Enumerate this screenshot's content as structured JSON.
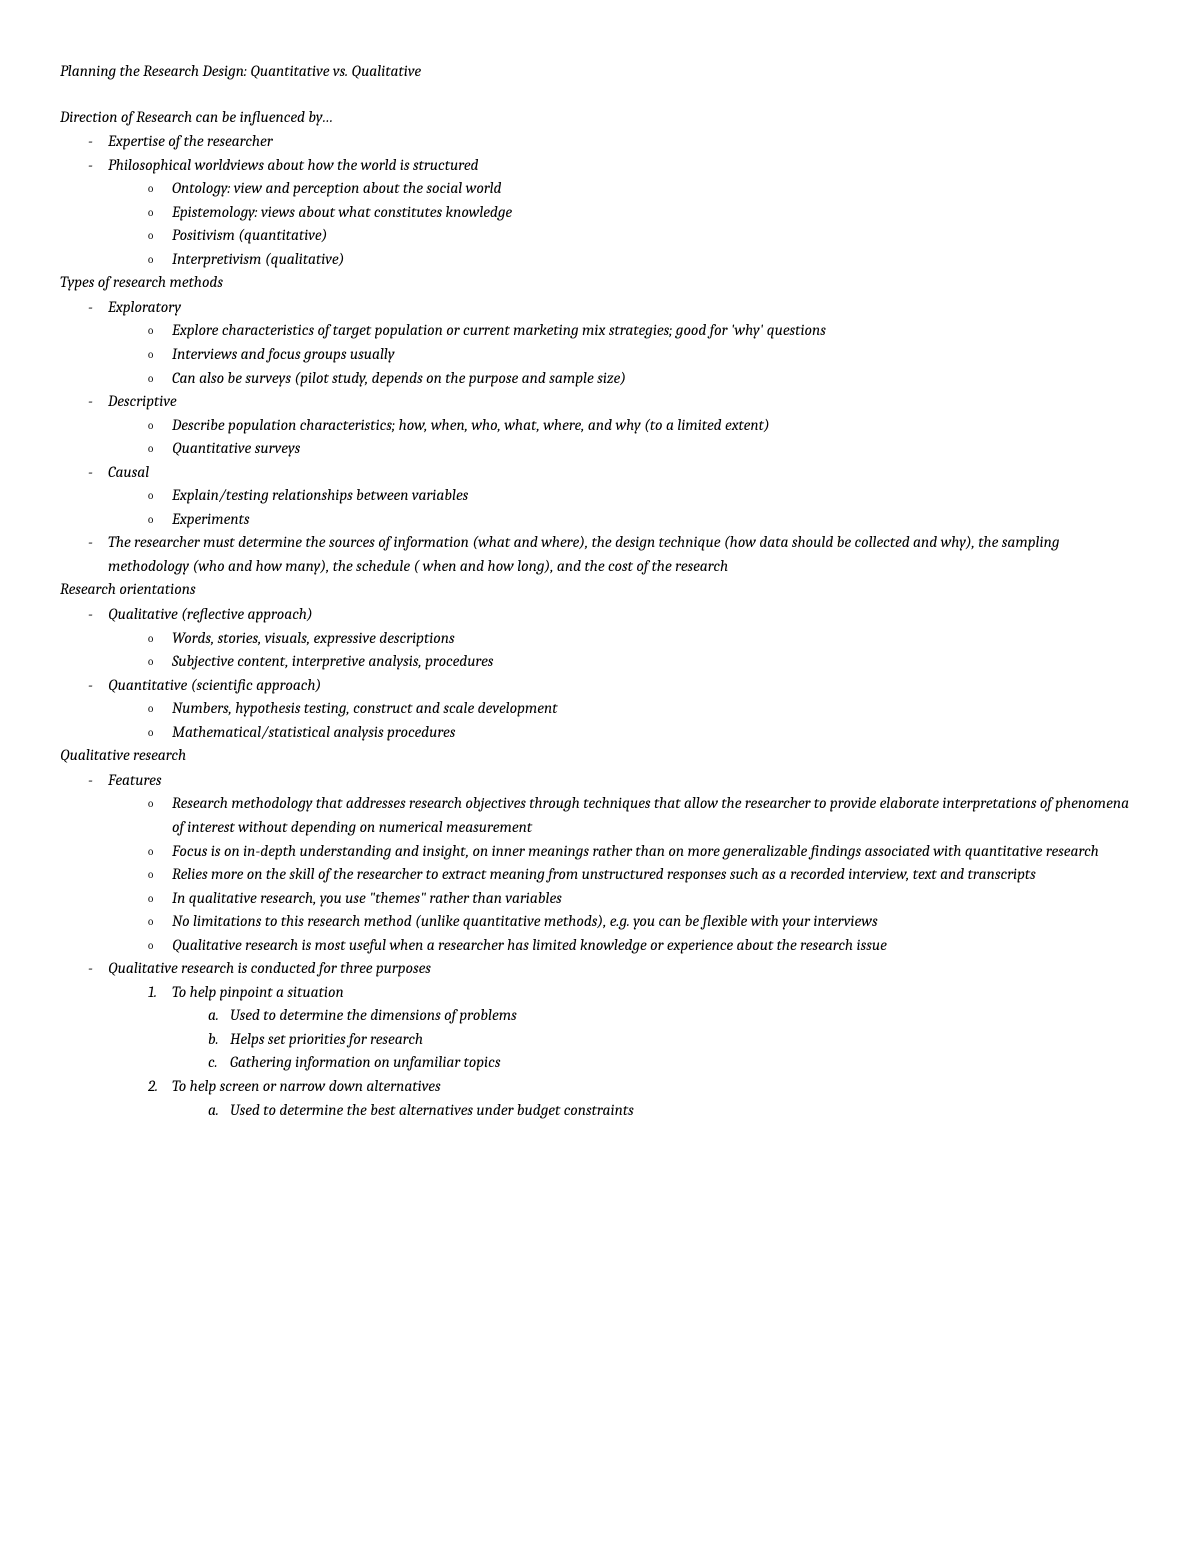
{
  "title": "Planning the Research Design: Quantitative vs. Qualitative",
  "section1": {
    "heading": "Direction of Research can be influenced by…",
    "item1": "Expertise of the researcher",
    "item2": "Philosophical worldviews about how the world is structured",
    "sub1": "Ontology: view and perception about the social world",
    "sub2": "Epistemology: views about what constitutes knowledge",
    "sub3": "Positivism (quantitative)",
    "sub4": "Interpretivism (qualitative)"
  },
  "section2": {
    "heading": "Types of research methods",
    "item1": "Exploratory",
    "sub1a": "Explore characteristics of target population or current marketing mix strategies; good for 'why' questions",
    "sub1b": "Interviews and focus groups usually",
    "sub1c": "Can also be surveys (pilot study, depends on the purpose and sample size)",
    "item2": "Descriptive",
    "sub2a": "Describe population characteristics; how, when, who, what, where, and why (to a limited extent)",
    "sub2b": "Quantitative surveys",
    "item3": "Causal",
    "sub3a": "Explain/testing relationships between variables",
    "sub3b": "Experiments",
    "item4": "The researcher must determine the sources of information (what and where), the design technique (how data should be collected and why), the sampling methodology (who and how many), the schedule ( when and how long), and the cost of the research"
  },
  "section3": {
    "heading": "Research orientations",
    "item1": "Qualitative (reflective approach)",
    "sub1a": "Words, stories, visuals, expressive descriptions",
    "sub1b": "Subjective content, interpretive analysis, procedures",
    "item2": "Quantitative (scientific approach)",
    "sub2a": "Numbers, hypothesis testing, construct and scale development",
    "sub2b": "Mathematical/statistical analysis procedures"
  },
  "section4": {
    "heading": "Qualitative research",
    "item1": "Features",
    "sub1a": "Research methodology that addresses research objectives through techniques that allow the researcher to provide elaborate interpretations of phenomena of interest without depending on numerical measurement",
    "sub1b": "Focus is on in-depth understanding and insight, on inner meanings rather than on more generalizable findings associated with quantitative research",
    "sub1c": "Relies more on the skill of the researcher to extract meaning from unstructured responses such as a recorded interview, text and transcripts",
    "sub1d": "In qualitative research, you use \"themes\" rather than variables",
    "sub1e": "No limitations to this research method (unlike quantitative methods), e.g. you can be flexible with your interviews",
    "sub1f": "Qualitative research is most useful when a researcher has limited knowledge or experience about the research issue",
    "item2": "Qualitative research is conducted for three purposes",
    "purpose1": "To help pinpoint a situation",
    "p1a": "Used to determine the dimensions of problems",
    "p1b": "Helps set priorities for research",
    "p1c": "Gathering information on unfamiliar topics",
    "purpose2": "To help screen or narrow down alternatives",
    "p2a": "Used to determine the best alternatives under budget constraints"
  },
  "nums": {
    "n1": "1.",
    "n2": "2."
  },
  "letters": {
    "a": "a.",
    "b": "b.",
    "c": "c."
  }
}
